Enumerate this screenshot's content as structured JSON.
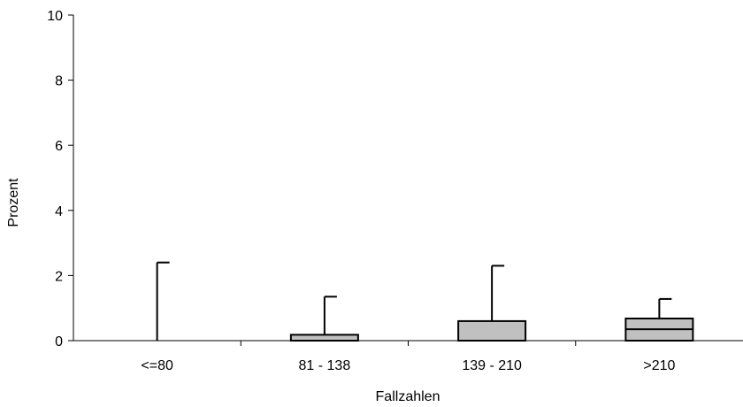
{
  "chart_data": {
    "type": "boxplot",
    "title": "",
    "xlabel": "Fallzahlen",
    "ylabel": "Prozent",
    "ylim": [
      0,
      10
    ],
    "yticks": [
      0,
      2,
      4,
      6,
      8,
      10
    ],
    "grid": false,
    "legend": "none",
    "colors": {
      "box_fill": "#c0c0c0",
      "stroke": "#000000"
    },
    "categories": [
      "<=80",
      "81 - 138",
      "139 - 210",
      ">210"
    ],
    "boxes": [
      {
        "q1": 0,
        "median": 0,
        "q3": 0,
        "whisker_low": 0,
        "whisker_high": 2.4
      },
      {
        "q1": 0,
        "median": 0,
        "q3": 0.18,
        "whisker_low": 0,
        "whisker_high": 1.35
      },
      {
        "q1": 0,
        "median": 0,
        "q3": 0.6,
        "whisker_low": 0,
        "whisker_high": 2.3
      },
      {
        "q1": 0,
        "median": 0.35,
        "q3": 0.68,
        "whisker_low": 0,
        "whisker_high": 1.28
      }
    ]
  }
}
